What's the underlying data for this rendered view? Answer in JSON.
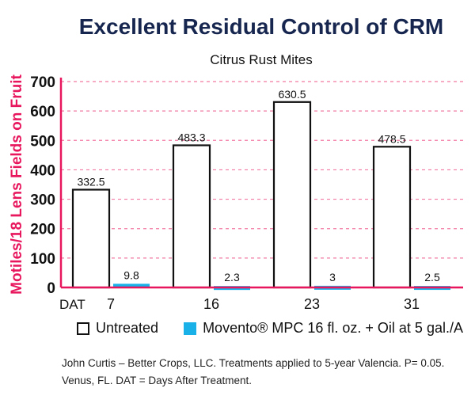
{
  "chart_data": {
    "type": "bar",
    "title": "Excellent Residual Control of CRM",
    "subtitle": "Citrus Rust Mites",
    "ylabel": "Motiles/18 Lens Fields on Fruit",
    "xlabel": "DAT",
    "categories": [
      "7",
      "16",
      "23",
      "31"
    ],
    "ylim": [
      0,
      700
    ],
    "yticks": [
      0,
      100,
      200,
      300,
      400,
      500,
      600,
      700
    ],
    "grid": true,
    "legend_position": "bottom",
    "series": [
      {
        "name": "Untreated",
        "values": [
          332.5,
          483.3,
          630.5,
          478.5
        ],
        "labels": [
          "332.5",
          "483.3",
          "630.5",
          "478.5"
        ],
        "color": "#ffffff",
        "stroke": "#111111"
      },
      {
        "name": "Movento® MPC 16 fl. oz. + Oil at 5 gal./A",
        "values": [
          9.8,
          2.3,
          3,
          2.5
        ],
        "labels": [
          "9.8",
          "2.3",
          "3",
          "2.5"
        ],
        "color": "#1ab0e8"
      }
    ],
    "footnote": [
      "John Curtis – Better Crops, LLC. Treatments applied to 5-year Valencia. P= 0.05.",
      "Venus, FL. DAT = Days After Treatment."
    ]
  },
  "colors": {
    "axis": "#e8175d",
    "title": "#16264f"
  }
}
